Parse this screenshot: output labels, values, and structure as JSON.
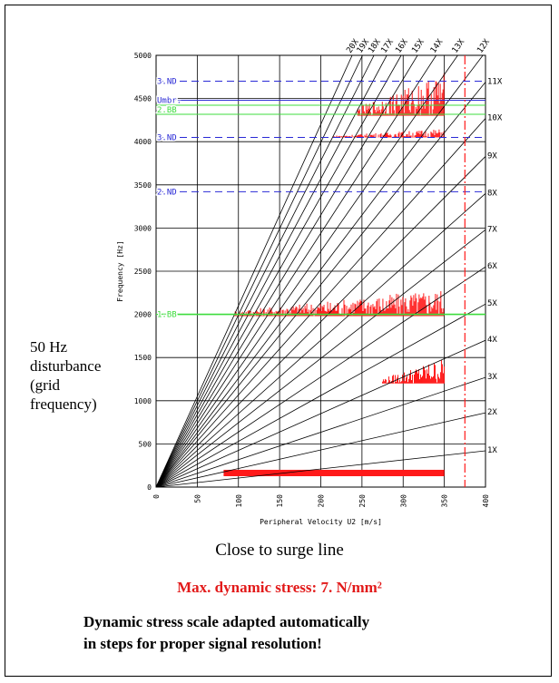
{
  "chart_data": {
    "type": "campbell",
    "xlabel": "Peripheral Velocity U2 [m/s]",
    "ylabel": "Frequency [Hz]",
    "xlim": [
      0,
      400
    ],
    "ylim": [
      0,
      5000
    ],
    "x_ticks": [
      0,
      50,
      100,
      150,
      200,
      250,
      300,
      350,
      400
    ],
    "y_ticks": [
      0,
      500,
      1000,
      1500,
      2000,
      2500,
      3000,
      3500,
      4000,
      4500,
      5000
    ],
    "grid": true,
    "order_lines": [
      {
        "label": "1X",
        "end_freq": 420
      },
      {
        "label": "2X",
        "end_freq": 860
      },
      {
        "label": "3X",
        "end_freq": 1270
      },
      {
        "label": "4X",
        "end_freq": 1700
      },
      {
        "label": "5X",
        "end_freq": 2120
      },
      {
        "label": "6X",
        "end_freq": 2550
      },
      {
        "label": "7X",
        "end_freq": 2980
      },
      {
        "label": "8X",
        "end_freq": 3400
      },
      {
        "label": "9X",
        "end_freq": 3830
      },
      {
        "label": "10X",
        "end_freq": 4270
      },
      {
        "label": "11X",
        "end_freq": 4690
      },
      {
        "label": "12X",
        "end_freq": 5000
      },
      {
        "label": "13X",
        "end_freq": 5000
      },
      {
        "label": "14X",
        "end_freq": 5000
      },
      {
        "label": "15X",
        "end_freq": 5000
      },
      {
        "label": "16X",
        "end_freq": 5000
      },
      {
        "label": "17X",
        "end_freq": 5000
      },
      {
        "label": "18X",
        "end_freq": 5000
      },
      {
        "label": "19X",
        "end_freq": 5000
      },
      {
        "label": "20X",
        "end_freq": 5000
      }
    ],
    "order_line_end_x": 400,
    "reference_lines": [
      {
        "label": "3.ND",
        "y": 4700,
        "style": "dashed",
        "color": "#2a2ad6"
      },
      {
        "label": "Umbr.",
        "y": 4480,
        "style": "solid",
        "color": "#2a2ad6"
      },
      {
        "label": "2.BB",
        "y": 4370,
        "style": "double",
        "color": "#3ddc3d"
      },
      {
        "label": "3.ND",
        "y": 4050,
        "style": "dashed",
        "color": "#2a2ad6"
      },
      {
        "label": "2.ND",
        "y": 3420,
        "style": "dashed",
        "color": "#2a2ad6"
      },
      {
        "label": "1.BB",
        "y": 2000,
        "style": "solid",
        "color": "#3ddc3d"
      }
    ],
    "surge_line_x": 375,
    "measured_bands": [
      {
        "x_start": 82,
        "x_end": 350,
        "f_low": 0,
        "f_high": 200,
        "desc": "50 Hz grid band"
      },
      {
        "x_start": 95,
        "x_end": 350,
        "f_low": 1980,
        "f_high": 2300,
        "desc": "near 1.BB"
      },
      {
        "x_start": 275,
        "x_end": 350,
        "f_low": 1200,
        "f_high": 1500,
        "desc": "scattered"
      },
      {
        "x_start": 215,
        "x_end": 350,
        "f_low": 4050,
        "f_high": 4150,
        "desc": "near 3.ND"
      },
      {
        "x_start": 245,
        "x_end": 350,
        "f_low": 4300,
        "f_high": 4800,
        "desc": "upper cluster"
      }
    ],
    "colors": {
      "order": "#000000",
      "reference_blue": "#2a2ad6",
      "reference_green": "#3ddc3d",
      "measurement": "#ff1a1a",
      "surge": "#ff1a1a"
    }
  },
  "annotation": {
    "lines": [
      "50 Hz",
      "disturbance",
      "(grid",
      "frequency)"
    ]
  },
  "caption": "Close to surge line",
  "stress": "Max. dynamic stress: 7. N/mm²",
  "note": {
    "lines": [
      "Dynamic stress scale adapted automatically",
      "in steps for proper signal resolution!"
    ]
  }
}
